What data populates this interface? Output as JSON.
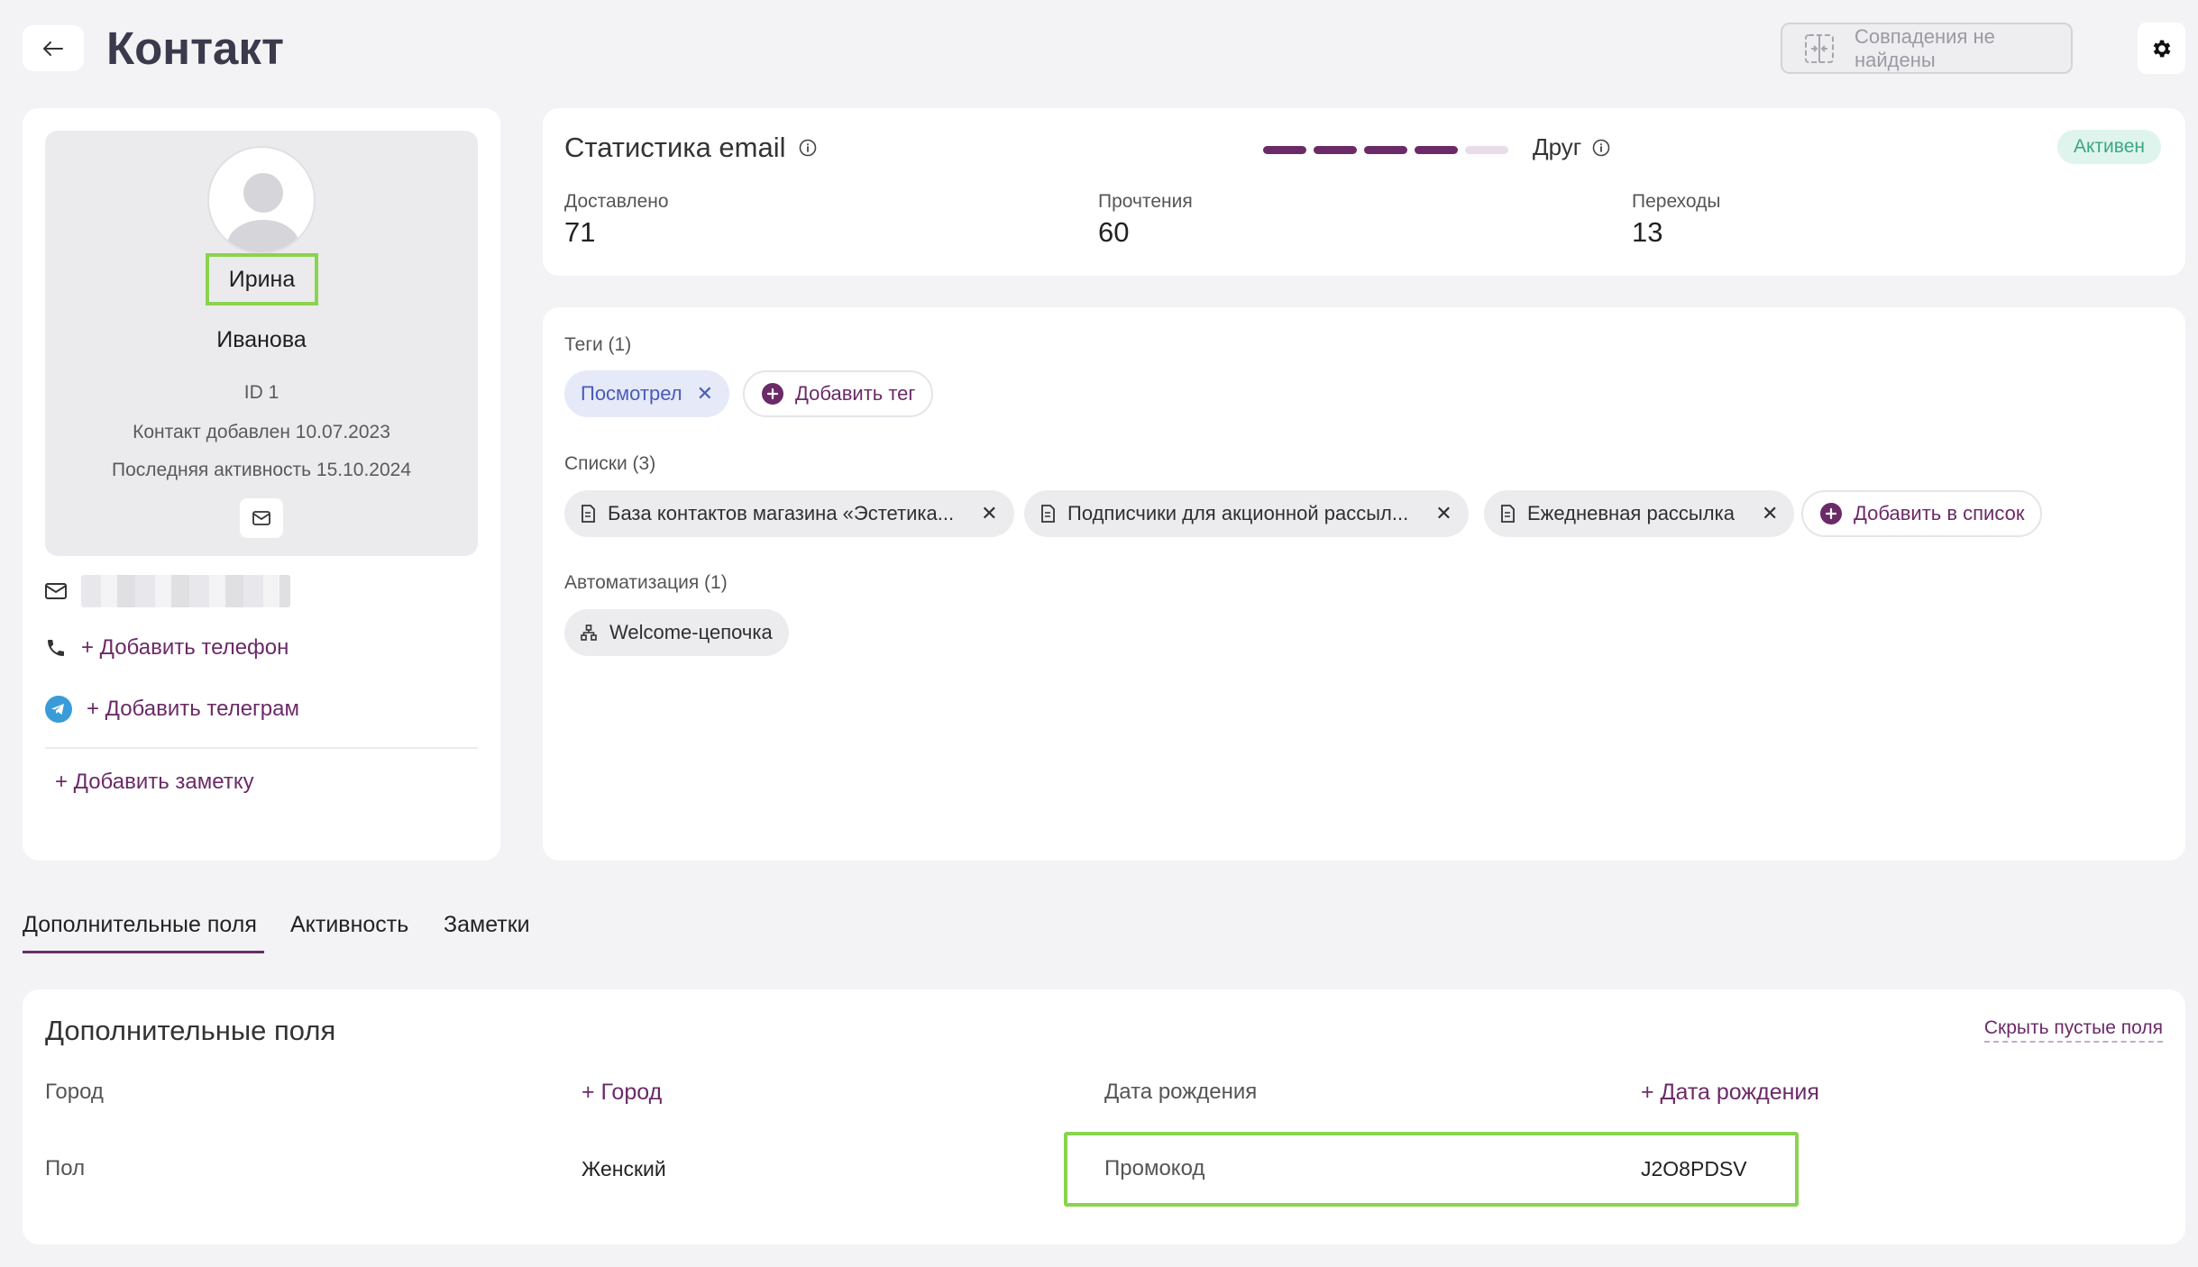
{
  "header": {
    "title": "Контакт",
    "back_icon": "arrow-left-icon",
    "duplicates_label": "Совпадения не найдены",
    "settings_icon": "gear-icon"
  },
  "profile": {
    "first_name": "Ирина",
    "last_name": "Иванова",
    "id": "ID 1",
    "added": "Контакт добавлен 10.07.2023",
    "last_activity": "Последняя активность 15.10.2024",
    "add_phone": "+ Добавить телефон",
    "add_telegram": "+ Добавить телеграм",
    "add_note": "+ Добавить заметку"
  },
  "email_stats": {
    "title": "Статистика email",
    "rating_label": "Друг",
    "status": "Активен",
    "delivered_label": "Доставлено",
    "delivered": "71",
    "reads_label": "Прочтения",
    "reads": "60",
    "clicks_label": "Переходы",
    "clicks": "13",
    "rating_segments_filled": 4,
    "rating_segments_total": 5
  },
  "tags": {
    "label": "Теги (1)",
    "items": [
      "Посмотрел"
    ],
    "add_label": "Добавить тег"
  },
  "lists": {
    "label": "Списки (3)",
    "items": [
      "База контактов магазина «Эстетика...",
      "Подписчики для акционной рассыл...",
      "Ежедневная рассылка"
    ],
    "add_label": "Добавить в список"
  },
  "automation": {
    "label": "Автоматизация (1)",
    "items": [
      "Welcome-цепочка"
    ]
  },
  "tabs": [
    "Дополнительные поля",
    "Активность",
    "Заметки"
  ],
  "extra_fields": {
    "title": "Дополнительные поля",
    "hide_empty": "Скрыть пустые поля",
    "city_label": "Город",
    "city_add": "+ Город",
    "birth_label": "Дата рождения",
    "birth_add": "+ Дата рождения",
    "gender_label": "Пол",
    "gender_value": "Женский",
    "promo_label": "Промокод",
    "promo_value": "J2O8PDSV"
  },
  "colors": {
    "accent": "#6b2a68",
    "highlight": "#8ad34e",
    "status_bg": "#dff4ec",
    "status_text": "#3aa882"
  }
}
